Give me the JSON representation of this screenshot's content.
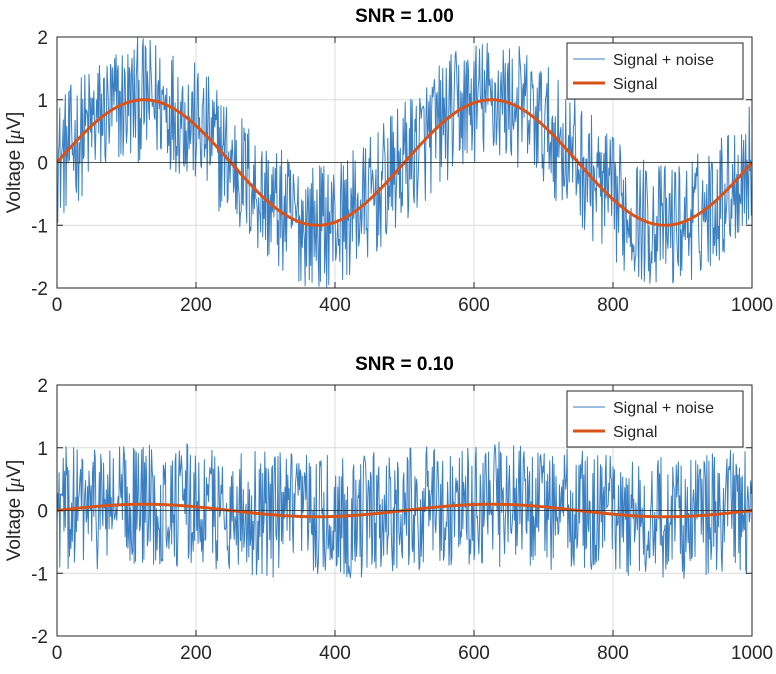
{
  "colors": {
    "noise": "#3a7fc2",
    "signal": "#d95319",
    "zero_line": "#262626"
  },
  "chart_data": [
    {
      "type": "line",
      "title": "SNR = 1.00",
      "xlabel": "",
      "ylabel": "Voltage [μV]",
      "ylabel_parts": {
        "before": "Voltage [",
        "unit": "μ",
        "after": "V]"
      },
      "xlim": [
        0,
        1000
      ],
      "ylim": [
        -2,
        2
      ],
      "xticks": [
        0,
        200,
        400,
        600,
        800,
        1000
      ],
      "yticks": [
        -2,
        -1,
        0,
        1,
        2
      ],
      "grid": true,
      "zero_line": true,
      "legend_position": "top-right",
      "series": [
        {
          "name": "Signal + noise",
          "color": "#3a7fc2",
          "amplitude": 1.0,
          "period": 500,
          "noise_amplitude": 1.0,
          "n_points": 1000,
          "line_width": 1
        },
        {
          "name": "Signal",
          "color": "#d95319",
          "amplitude": 1.0,
          "period": 500,
          "line_width": 3
        }
      ]
    },
    {
      "type": "line",
      "title": "SNR = 0.10",
      "xlabel": "",
      "ylabel": "Voltage [μV]",
      "ylabel_parts": {
        "before": "Voltage [",
        "unit": "μ",
        "after": "V]"
      },
      "xlim": [
        0,
        1000
      ],
      "ylim": [
        -2,
        2
      ],
      "xticks": [
        0,
        200,
        400,
        600,
        800,
        1000
      ],
      "yticks": [
        -2,
        -1,
        0,
        1,
        2
      ],
      "grid": true,
      "zero_line": true,
      "legend_position": "top-right",
      "series": [
        {
          "name": "Signal + noise",
          "color": "#3a7fc2",
          "amplitude": 0.1,
          "period": 500,
          "noise_amplitude": 1.0,
          "n_points": 1000,
          "line_width": 1
        },
        {
          "name": "Signal",
          "color": "#d95319",
          "amplitude": 0.1,
          "period": 500,
          "line_width": 3
        }
      ]
    }
  ]
}
